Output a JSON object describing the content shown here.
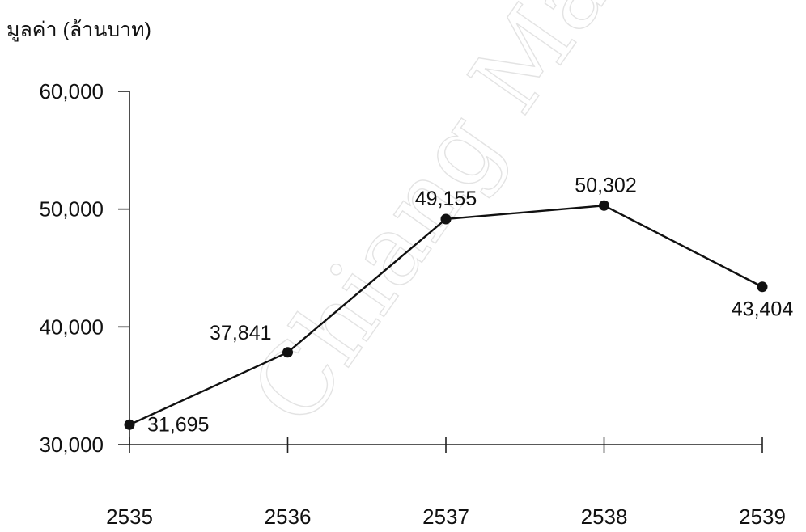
{
  "chart_data": {
    "type": "line",
    "ylabel": "มูลค่า (ล้านบาท)",
    "xlabel": "",
    "categories": [
      "2535",
      "2536",
      "2537",
      "2538",
      "2539"
    ],
    "series": [
      {
        "values": [
          31695,
          37841,
          49155,
          50302,
          43404
        ]
      }
    ],
    "data_labels": [
      "31,695",
      "37,841",
      "49,155",
      "50,302",
      "43,404"
    ],
    "y_ticks": [
      30000,
      40000,
      50000,
      60000
    ],
    "y_tick_labels": [
      "30,000",
      "40,000",
      "50,000",
      "60,000"
    ],
    "ylim": [
      30000,
      60000
    ],
    "grid": false,
    "legend": "none",
    "colors": {
      "line": "#111111",
      "marker": "#111111",
      "axis": "#222222"
    }
  }
}
